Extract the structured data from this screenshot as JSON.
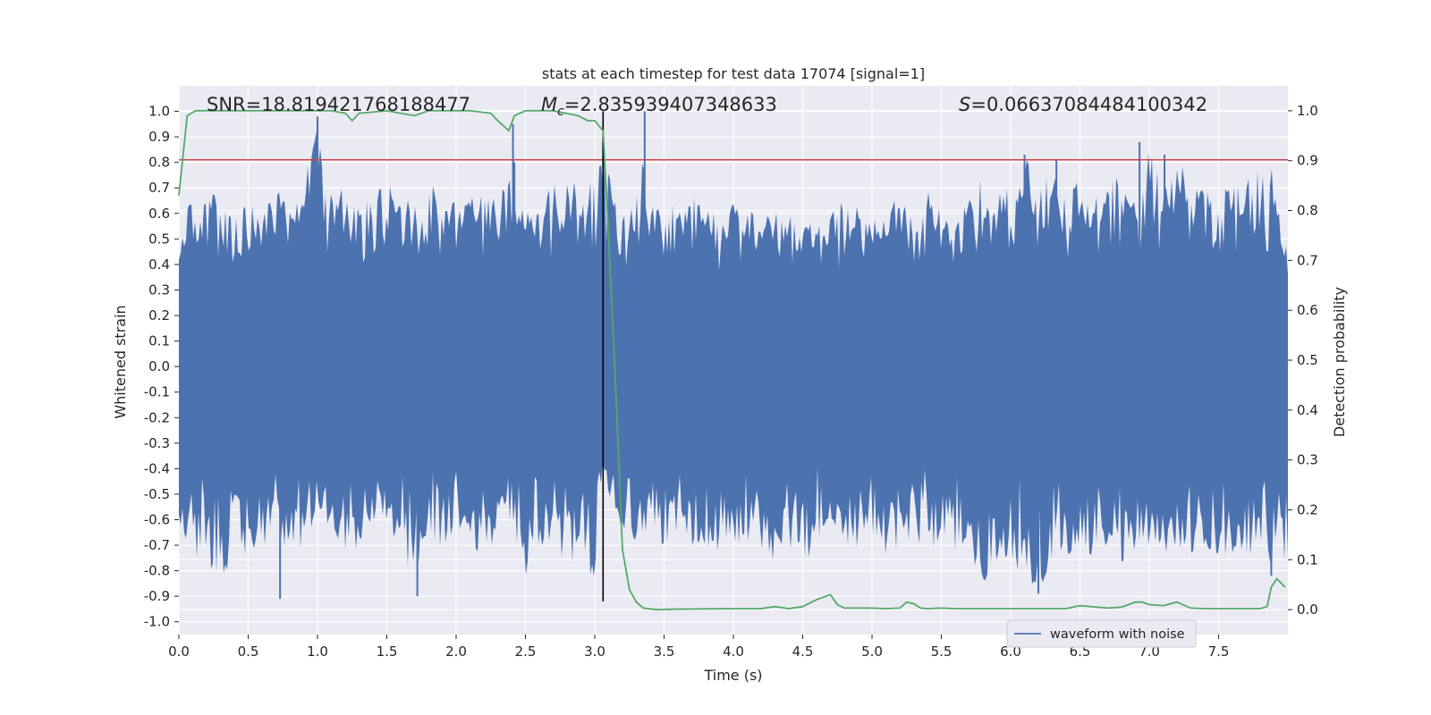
{
  "chart_data": {
    "type": "line",
    "title": "stats at each timestep for test data 17074 [signal=1]",
    "xlabel": "Time (s)",
    "ylabel": "Whitened strain",
    "ylabel_right": "Detection probability",
    "xlim": [
      0,
      8
    ],
    "ylim": [
      -1.05,
      1.1
    ],
    "ylim_right": [
      -0.05,
      1.05
    ],
    "x_ticks": [
      "0.0",
      "0.5",
      "1.0",
      "1.5",
      "2.0",
      "2.5",
      "3.0",
      "3.5",
      "4.0",
      "4.5",
      "5.0",
      "5.5",
      "6.0",
      "6.5",
      "7.0",
      "7.5"
    ],
    "y_ticks": [
      "1.0",
      "0.9",
      "0.8",
      "0.7",
      "0.6",
      "0.5",
      "0.4",
      "0.3",
      "0.2",
      "0.1",
      "0.0",
      "-0.1",
      "-0.2",
      "-0.3",
      "-0.4",
      "-0.5",
      "-0.6",
      "-0.7",
      "-0.8",
      "-0.9",
      "-1.0"
    ],
    "y_ticks_right": [
      "1.0",
      "0.9",
      "0.8",
      "0.7",
      "0.6",
      "0.5",
      "0.4",
      "0.3",
      "0.2",
      "0.1",
      "0.0"
    ],
    "grid": true,
    "legend": {
      "position": "lower-right",
      "entries": [
        "waveform with noise"
      ]
    },
    "annotations": {
      "snr": "SNR=18.819421768188477",
      "mc": "=2.835939407348633",
      "s": "=0.06637084484100342"
    },
    "threshold": {
      "value": 0.81,
      "axis": "left",
      "color": "#c44e52"
    },
    "event_marker": {
      "x": 3.06,
      "color": "#000000"
    },
    "series": [
      {
        "name": "waveform with noise",
        "color": "#4c72b0",
        "axis": "left",
        "envelope": {
          "x": [
            0.0,
            0.1,
            0.2,
            0.3,
            0.4,
            0.5,
            0.6,
            0.7,
            0.8,
            0.9,
            1.0,
            1.1,
            1.2,
            1.3,
            1.4,
            1.5,
            1.6,
            1.7,
            1.8,
            1.9,
            2.0,
            2.1,
            2.2,
            2.3,
            2.4,
            2.5,
            2.6,
            2.7,
            2.8,
            2.9,
            3.0,
            3.06,
            3.1,
            3.2,
            3.3,
            3.36,
            3.4,
            3.5,
            3.6,
            3.7,
            3.8,
            3.9,
            4.0,
            4.1,
            4.2,
            4.3,
            4.4,
            4.5,
            4.6,
            4.7,
            4.8,
            4.9,
            5.0,
            5.1,
            5.2,
            5.3,
            5.4,
            5.5,
            5.6,
            5.7,
            5.8,
            5.9,
            6.0,
            6.1,
            6.2,
            6.3,
            6.4,
            6.5,
            6.6,
            6.7,
            6.8,
            6.9,
            7.0,
            7.1,
            7.2,
            7.3,
            7.4,
            7.5,
            7.6,
            7.7,
            7.8,
            7.9,
            8.0
          ],
          "upper": [
            0.55,
            0.68,
            0.67,
            0.69,
            0.58,
            0.66,
            0.6,
            0.71,
            0.62,
            0.72,
            0.98,
            0.68,
            0.72,
            0.68,
            0.67,
            0.73,
            0.63,
            0.7,
            0.72,
            0.69,
            0.64,
            0.72,
            0.66,
            0.68,
            0.8,
            0.63,
            0.66,
            0.71,
            0.75,
            0.73,
            0.72,
            0.88,
            0.75,
            0.6,
            0.67,
            1.0,
            0.62,
            0.64,
            0.68,
            0.66,
            0.71,
            0.58,
            0.65,
            0.6,
            0.62,
            0.63,
            0.6,
            0.58,
            0.57,
            0.6,
            0.66,
            0.64,
            0.58,
            0.62,
            0.67,
            0.6,
            0.72,
            0.6,
            0.58,
            0.66,
            0.75,
            0.7,
            0.73,
            0.83,
            0.7,
            0.8,
            0.66,
            0.75,
            0.65,
            0.77,
            0.72,
            0.68,
            0.88,
            0.7,
            0.83,
            0.72,
            0.75,
            0.7,
            0.72,
            0.73,
            0.78,
            0.81,
            0.45
          ],
          "lower": [
            -0.6,
            -0.76,
            -0.75,
            -0.91,
            -0.7,
            -0.76,
            -0.73,
            -0.62,
            -0.78,
            -0.7,
            -0.6,
            -0.65,
            -0.73,
            -0.74,
            -0.6,
            -0.67,
            -0.71,
            -0.9,
            -0.68,
            -0.73,
            -0.63,
            -0.75,
            -0.77,
            -0.65,
            -0.71,
            -0.83,
            -0.7,
            -0.72,
            -0.78,
            -0.75,
            -0.85,
            -0.38,
            -0.5,
            -0.65,
            -0.7,
            -0.68,
            -0.6,
            -0.73,
            -0.65,
            -0.7,
            -0.72,
            -0.75,
            -0.77,
            -0.69,
            -0.74,
            -0.78,
            -0.73,
            -0.8,
            -0.68,
            -0.71,
            -0.7,
            -0.71,
            -0.72,
            -0.76,
            -0.73,
            -0.7,
            -0.7,
            -0.74,
            -0.72,
            -0.75,
            -0.85,
            -0.8,
            -0.78,
            -0.85,
            -0.89,
            -0.77,
            -0.75,
            -0.73,
            -0.75,
            -0.7,
            -0.77,
            -0.74,
            -0.77,
            -0.75,
            -0.72,
            -0.74,
            -0.71,
            -0.76,
            -0.73,
            -0.75,
            -0.77,
            -0.82,
            -0.75
          ]
        },
        "spikes": [
          {
            "x": 1.0,
            "y": 0.98
          },
          {
            "x": 2.41,
            "y": 0.95
          },
          {
            "x": 2.42,
            "y": 0.8
          },
          {
            "x": 3.06,
            "y": 0.88
          },
          {
            "x": 3.36,
            "y": 1.0
          },
          {
            "x": 6.1,
            "y": 0.83
          },
          {
            "x": 6.33,
            "y": 0.81
          },
          {
            "x": 6.93,
            "y": 0.88
          },
          {
            "x": 7.11,
            "y": 0.83
          },
          {
            "x": 0.73,
            "y": -0.91
          },
          {
            "x": 1.72,
            "y": -0.9
          },
          {
            "x": 6.2,
            "y": -0.89
          },
          {
            "x": 7.88,
            "y": -0.82
          }
        ]
      },
      {
        "name": "detection probability",
        "color": "#55a868",
        "axis": "right",
        "x": [
          0.0,
          0.06,
          0.12,
          0.3,
          0.5,
          0.8,
          1.0,
          1.1,
          1.2,
          1.25,
          1.3,
          1.5,
          1.7,
          1.8,
          2.0,
          2.1,
          2.25,
          2.3,
          2.38,
          2.42,
          2.5,
          2.6,
          2.7,
          2.88,
          2.95,
          3.0,
          3.06,
          3.1,
          3.15,
          3.2,
          3.25,
          3.3,
          3.35,
          3.45,
          3.6,
          4.0,
          4.2,
          4.3,
          4.4,
          4.5,
          4.6,
          4.7,
          4.75,
          4.8,
          5.0,
          5.1,
          5.2,
          5.25,
          5.3,
          5.35,
          5.4,
          5.5,
          5.6,
          5.8,
          6.0,
          6.2,
          6.4,
          6.5,
          6.7,
          6.8,
          6.85,
          6.9,
          6.95,
          7.0,
          7.1,
          7.2,
          7.3,
          7.4,
          7.5,
          7.7,
          7.8,
          7.85,
          7.88,
          7.92,
          7.98
        ],
        "values": [
          0.83,
          0.99,
          1.0,
          1.0,
          1.0,
          1.0,
          1.0,
          1.0,
          0.995,
          0.98,
          0.995,
          1.0,
          0.99,
          1.0,
          1.0,
          1.0,
          0.995,
          0.98,
          0.96,
          0.99,
          1.0,
          1.0,
          1.0,
          0.99,
          0.98,
          0.98,
          0.96,
          0.75,
          0.45,
          0.12,
          0.04,
          0.015,
          0.003,
          0.0,
          0.001,
          0.002,
          0.002,
          0.006,
          0.002,
          0.006,
          0.02,
          0.03,
          0.01,
          0.003,
          0.003,
          0.002,
          0.003,
          0.015,
          0.012,
          0.003,
          0.002,
          0.003,
          0.002,
          0.002,
          0.002,
          0.002,
          0.002,
          0.008,
          0.003,
          0.005,
          0.01,
          0.015,
          0.015,
          0.01,
          0.008,
          0.015,
          0.003,
          0.002,
          0.002,
          0.002,
          0.002,
          0.006,
          0.045,
          0.062,
          0.045
        ]
      }
    ]
  }
}
